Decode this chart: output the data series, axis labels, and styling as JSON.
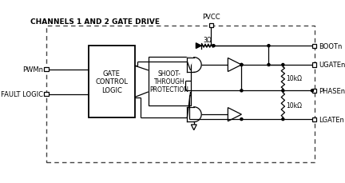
{
  "title": "CHANNELS 1 AND 2 GATE DRIVE",
  "pvcc_label": "PVCC",
  "boot_label": "BOOTn",
  "ugate_label": "UGATEn",
  "phase_label": "PHASEn",
  "lgate_label": "LGATEn",
  "pwm_label": "PWMn",
  "fault_label": "FAULT LOGIC",
  "gcl_label": "GATE\nCONTROL\nLOGIC",
  "stp_label": "SHOOT-\nTHROUGH\nPROTECTION",
  "r1_label": "3Ω",
  "r2_label": "10kΩ",
  "r3_label": "10kΩ",
  "bg_color": "#ffffff",
  "font_size": 6.0,
  "small_font": 5.5,
  "title_font": 6.5
}
